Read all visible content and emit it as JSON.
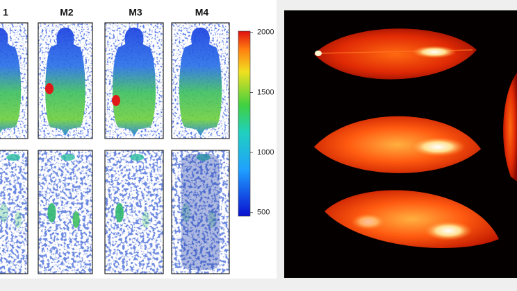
{
  "panel_labels": [
    "1",
    "M2",
    "M3",
    "M4"
  ],
  "colorbar": {
    "range": [
      470,
      2010
    ],
    "ticks": [
      500,
      1000,
      1500,
      2000
    ]
  }
}
